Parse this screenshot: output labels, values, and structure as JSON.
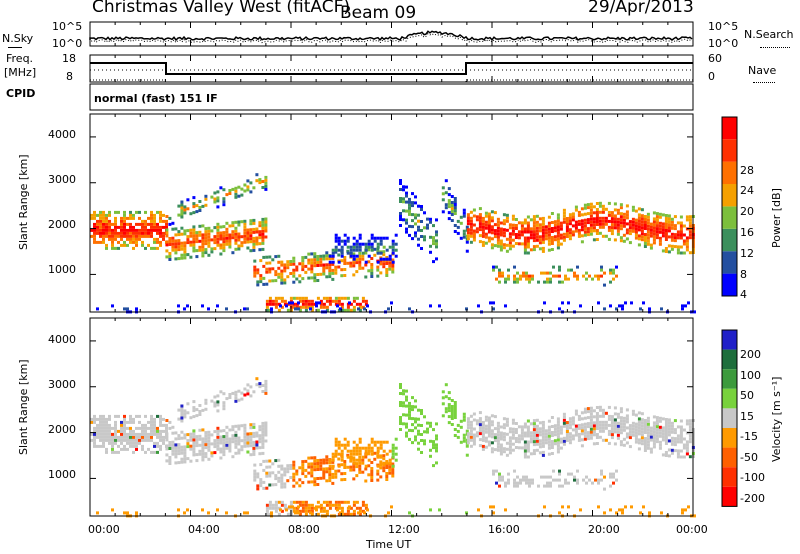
{
  "header": {
    "station": "Christmas Valley West (fitACF)",
    "beam": "Beam 09",
    "date": "29/Apr/2013"
  },
  "top_panels": {
    "nsky_label": "N.Sky",
    "nsearch_label": "N.Search",
    "noise_ticks_left": [
      "10^5",
      "10^0"
    ],
    "noise_ticks_right": [
      "10^5",
      "10^0"
    ],
    "freq_label_line1": "Freq.",
    "freq_label_line2": "[MHz]",
    "freq_ticks_left": [
      "18",
      "8"
    ],
    "nave_label": "Nave",
    "nave_ticks_right": [
      "60",
      "0"
    ],
    "cpid_label": "CPID",
    "cpid_text": "normal (fast) 151 IF"
  },
  "colors": {
    "power_scale": [
      "#0000ff",
      "#234fa0",
      "#3b8f5c",
      "#7cbf3c",
      "#f5a000",
      "#ff7000",
      "#ff3000",
      "#ff0000"
    ],
    "velocity_scale": [
      "#2020c8",
      "#1e6e3c",
      "#3c9a3c",
      "#78d23c",
      "#c8c8c8",
      "#ff9a00",
      "#ff6000",
      "#ff3000",
      "#ff0000"
    ]
  },
  "chart_data": [
    {
      "type": "heatmap",
      "name": "power",
      "xlabel": "Time UT",
      "ylabel": "Slant Range [km]",
      "x_ticks": [
        "00:00",
        "04:00",
        "08:00",
        "12:00",
        "16:00",
        "20:00",
        "00:00"
      ],
      "y_ticks": [
        "1000",
        "2000",
        "3000",
        "4000"
      ],
      "colorbar_label": "Power [dB]",
      "colorbar_ticks": [
        "4",
        "8",
        "12",
        "16",
        "20",
        "24",
        "28"
      ],
      "xlim_hours": [
        0,
        24
      ],
      "ylim_km": [
        180,
        4500
      ]
    },
    {
      "type": "heatmap",
      "name": "velocity",
      "xlabel": "Time UT",
      "ylabel": "Slant Range [km]",
      "x_ticks": [
        "00:00",
        "04:00",
        "08:00",
        "12:00",
        "16:00",
        "20:00",
        "00:00"
      ],
      "y_ticks": [
        "1000",
        "2000",
        "3000",
        "4000"
      ],
      "colorbar_label": "Velocity [m s⁻¹]",
      "colorbar_ticks": [
        "200",
        "100",
        "50",
        "15",
        "-15",
        "-50",
        "-100",
        "-200"
      ],
      "xlim_hours": [
        0,
        24
      ],
      "ylim_km": [
        180,
        4500
      ]
    }
  ]
}
